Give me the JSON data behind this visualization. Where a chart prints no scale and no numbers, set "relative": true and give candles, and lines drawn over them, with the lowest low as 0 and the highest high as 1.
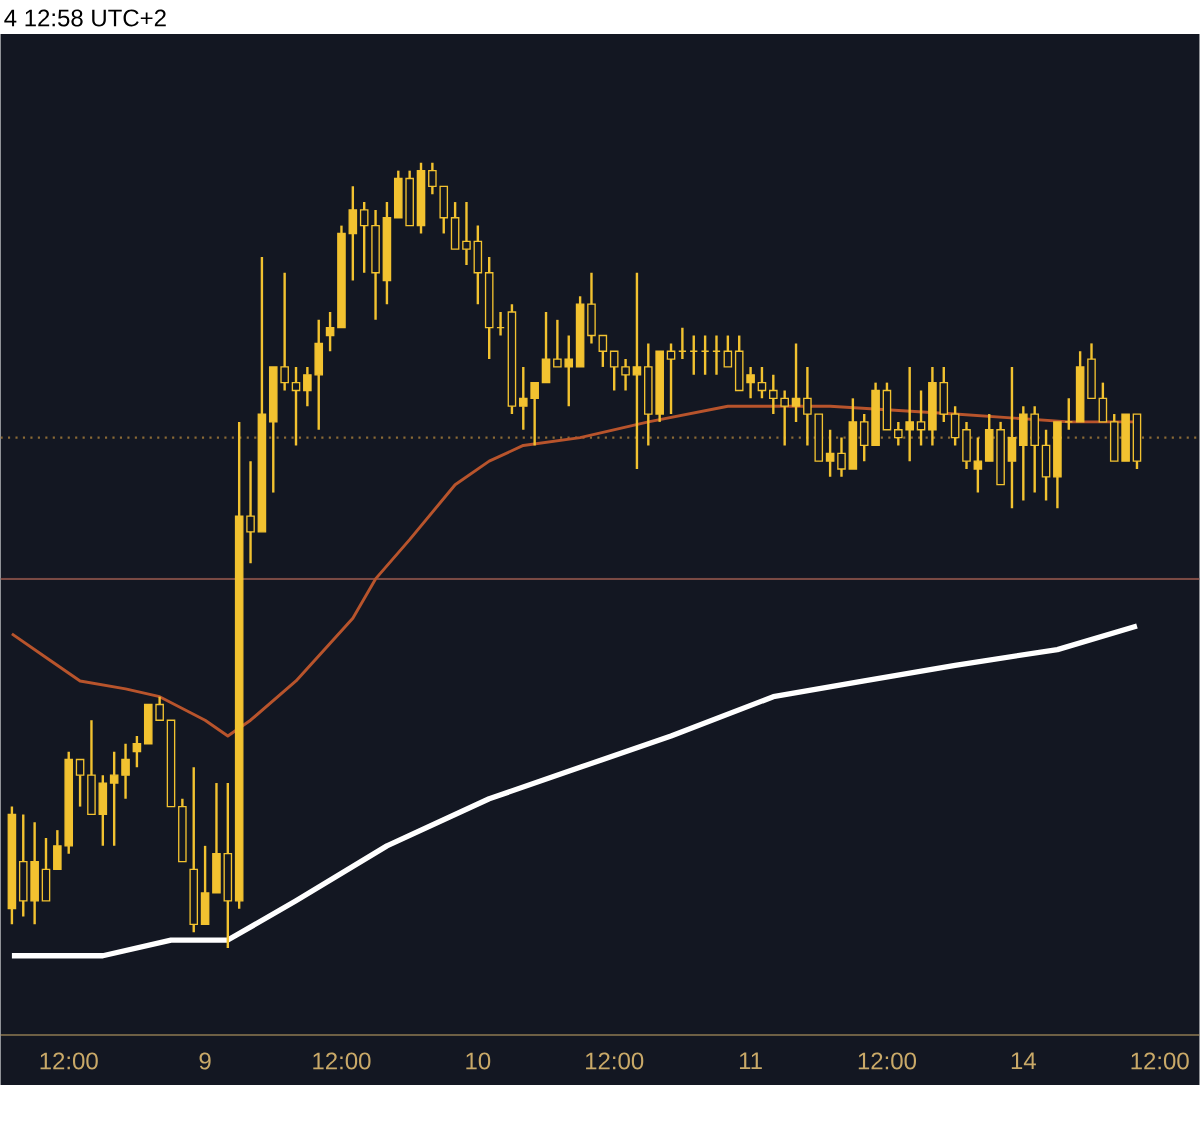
{
  "chart_data": {
    "type": "candlestick",
    "title": "4 12:58 UTC+2",
    "relative": true,
    "color": "#f2c230",
    "categories": [
      null,
      null,
      null,
      null,
      null,
      "12:00",
      null,
      null,
      null,
      null,
      null,
      null,
      null,
      null,
      null,
      null,
      null,
      "9",
      null,
      null,
      null,
      null,
      null,
      null,
      null,
      null,
      null,
      null,
      null,
      "12:00",
      null,
      null,
      null,
      null,
      null,
      null,
      null,
      null,
      null,
      null,
      null,
      "10",
      null,
      null,
      null,
      null,
      null,
      null,
      null,
      null,
      null,
      null,
      null,
      "12:00",
      null,
      null,
      null,
      null,
      null,
      null,
      null,
      null,
      null,
      null,
      null,
      "11",
      null,
      null,
      null,
      null,
      null,
      null,
      null,
      null,
      null,
      null,
      null,
      "12:00",
      null,
      null,
      null,
      null,
      null,
      null,
      null,
      null,
      null,
      null,
      null,
      "14",
      null,
      null,
      null,
      null,
      null,
      null,
      null,
      null,
      null,
      null,
      null,
      "12:00",
      null,
      null,
      null
    ],
    "ohlc": [
      [
        0.05,
        0.18,
        0.03,
        0.17
      ],
      [
        0.11,
        0.17,
        0.04,
        0.06
      ],
      [
        0.06,
        0.16,
        0.03,
        0.11
      ],
      [
        0.1,
        0.14,
        0.06,
        0.06
      ],
      [
        0.1,
        0.15,
        0.1,
        0.13
      ],
      [
        0.13,
        0.25,
        0.12,
        0.24
      ],
      [
        0.24,
        0.24,
        0.18,
        0.22
      ],
      [
        0.22,
        0.29,
        0.17,
        0.17
      ],
      [
        0.17,
        0.22,
        0.13,
        0.21
      ],
      [
        0.21,
        0.25,
        0.13,
        0.22
      ],
      [
        0.22,
        0.26,
        0.19,
        0.24
      ],
      [
        0.25,
        0.27,
        0.23,
        0.26
      ],
      [
        0.26,
        0.31,
        0.26,
        0.31
      ],
      [
        0.31,
        0.32,
        0.29,
        0.29
      ],
      [
        0.29,
        0.29,
        0.18,
        0.18
      ],
      [
        0.18,
        0.19,
        0.11,
        0.11
      ],
      [
        0.1,
        0.23,
        0.02,
        0.03
      ],
      [
        0.03,
        0.13,
        0.03,
        0.07
      ],
      [
        0.07,
        0.21,
        0.07,
        0.12
      ],
      [
        0.12,
        0.21,
        0,
        0.06
      ],
      [
        0.06,
        0.67,
        0.05,
        0.55
      ],
      [
        0.55,
        0.62,
        0.49,
        0.53
      ],
      [
        0.53,
        0.88,
        0.53,
        0.68
      ],
      [
        0.67,
        0.74,
        0.58,
        0.74
      ],
      [
        0.74,
        0.86,
        0.71,
        0.72
      ],
      [
        0.72,
        0.74,
        0.64,
        0.71
      ],
      [
        0.71,
        0.74,
        0.69,
        0.73
      ],
      [
        0.73,
        0.8,
        0.66,
        0.77
      ],
      [
        0.78,
        0.81,
        0.76,
        0.79
      ],
      [
        0.79,
        0.92,
        0.79,
        0.91
      ],
      [
        0.91,
        0.97,
        0.85,
        0.94
      ],
      [
        0.94,
        0.95,
        0.86,
        0.92
      ],
      [
        0.92,
        0.94,
        0.8,
        0.86
      ],
      [
        0.85,
        0.95,
        0.82,
        0.93
      ],
      [
        0.93,
        0.99,
        0.93,
        0.98
      ],
      [
        0.98,
        0.99,
        0.92,
        0.92
      ],
      [
        0.92,
        1.0,
        0.91,
        0.99
      ],
      [
        0.99,
        1,
        0.96,
        0.97
      ],
      [
        0.97,
        0.97,
        0.91,
        0.93
      ],
      [
        0.93,
        0.95,
        0.89,
        0.89
      ],
      [
        0.9,
        0.95,
        0.87,
        0.89
      ],
      [
        0.9,
        0.92,
        0.82,
        0.86
      ],
      [
        0.86,
        0.88,
        0.75,
        0.79
      ],
      [
        0.79,
        0.81,
        0.78,
        0.79
      ],
      [
        0.81,
        0.82,
        0.68,
        0.69
      ],
      [
        0.69,
        0.74,
        0.66,
        0.7
      ],
      [
        0.7,
        0.72,
        0.64,
        0.72
      ],
      [
        0.72,
        0.81,
        0.72,
        0.75
      ],
      [
        0.75,
        0.8,
        0.74,
        0.74
      ],
      [
        0.74,
        0.78,
        0.69,
        0.75
      ],
      [
        0.74,
        0.83,
        0.74,
        0.82
      ],
      [
        0.82,
        0.86,
        0.77,
        0.78
      ],
      [
        0.78,
        0.78,
        0.74,
        0.76
      ],
      [
        0.76,
        0.76,
        0.71,
        0.74
      ],
      [
        0.74,
        0.75,
        0.71,
        0.73
      ],
      [
        0.73,
        0.86,
        0.61,
        0.74
      ],
      [
        0.74,
        0.77,
        0.64,
        0.68
      ],
      [
        0.68,
        0.76,
        0.67,
        0.76
      ],
      [
        0.76,
        0.77,
        0.68,
        0.75
      ],
      [
        0.76,
        0.79,
        0.75,
        0.76
      ],
      [
        0.76,
        0.78,
        0.73,
        0.76
      ],
      [
        0.76,
        0.78,
        0.73,
        0.76
      ],
      [
        0.76,
        0.78,
        0.73,
        0.76
      ],
      [
        0.76,
        0.78,
        0.74,
        0.74
      ],
      [
        0.76,
        0.78,
        0.71,
        0.71
      ],
      [
        0.72,
        0.74,
        0.7,
        0.73
      ],
      [
        0.72,
        0.74,
        0.7,
        0.71
      ],
      [
        0.71,
        0.73,
        0.68,
        0.7
      ],
      [
        0.7,
        0.71,
        0.64,
        0.69
      ],
      [
        0.69,
        0.77,
        0.67,
        0.7
      ],
      [
        0.7,
        0.74,
        0.64,
        0.68
      ],
      [
        0.68,
        0.68,
        0.62,
        0.62
      ],
      [
        0.62,
        0.66,
        0.6,
        0.63
      ],
      [
        0.63,
        0.65,
        0.6,
        0.61
      ],
      [
        0.61,
        0.7,
        0.61,
        0.67
      ],
      [
        0.67,
        0.68,
        0.62,
        0.64
      ],
      [
        0.64,
        0.72,
        0.64,
        0.71
      ],
      [
        0.71,
        0.72,
        0.66,
        0.66
      ],
      [
        0.66,
        0.67,
        0.64,
        0.65
      ],
      [
        0.66,
        0.74,
        0.62,
        0.67
      ],
      [
        0.67,
        0.71,
        0.64,
        0.66
      ],
      [
        0.66,
        0.74,
        0.64,
        0.72
      ],
      [
        0.72,
        0.74,
        0.67,
        0.68
      ],
      [
        0.68,
        0.69,
        0.64,
        0.65
      ],
      [
        0.66,
        0.67,
        0.61,
        0.62
      ],
      [
        0.61,
        0.65,
        0.58,
        0.62
      ],
      [
        0.62,
        0.68,
        0.62,
        0.66
      ],
      [
        0.66,
        0.67,
        0.59,
        0.59
      ],
      [
        0.62,
        0.74,
        0.56,
        0.65
      ],
      [
        0.64,
        0.69,
        0.57,
        0.68
      ],
      [
        0.68,
        0.69,
        0.58,
        0.64
      ],
      [
        0.64,
        0.66,
        0.57,
        0.6
      ],
      [
        0.6,
        0.67,
        0.56,
        0.67
      ],
      [
        0.67,
        0.7,
        0.66,
        0.67
      ],
      [
        0.67,
        0.76,
        0.67,
        0.74
      ],
      [
        0.75,
        0.77,
        0.7,
        0.7
      ],
      [
        0.7,
        0.72,
        0.67,
        0.67
      ],
      [
        0.67,
        0.68,
        0.62,
        0.62
      ],
      [
        0.62,
        0.68,
        0.62,
        0.68
      ],
      [
        0.68,
        0.68,
        0.61,
        0.62
      ],
      null,
      null,
      null,
      null,
      null
    ],
    "series": [
      {
        "type": "line",
        "color": "#b8542c",
        "values": [
          0.4,
          null,
          null,
          0.37,
          null,
          null,
          0.34,
          null,
          null,
          null,
          0.33,
          null,
          null,
          0.32,
          null,
          null,
          null,
          0.29,
          null,
          0.27,
          null,
          0.29,
          null,
          null,
          null,
          0.34,
          null,
          null,
          null,
          null,
          0.42,
          null,
          0.47,
          null,
          null,
          0.52,
          null,
          null,
          null,
          0.59,
          null,
          null,
          0.62,
          null,
          null,
          0.64,
          null,
          null,
          null,
          null,
          0.65,
          null,
          null,
          null,
          null,
          null,
          0.67,
          null,
          null,
          null,
          null,
          null,
          null,
          0.69,
          null,
          null,
          null,
          null,
          null,
          null,
          null,
          null,
          0.69,
          null,
          null,
          null,
          null,
          null,
          null,
          null,
          null,
          null,
          null,
          0.68,
          null,
          null,
          null,
          null,
          null,
          null,
          null,
          null,
          null,
          0.67,
          null,
          null,
          null,
          null,
          null,
          0.67,
          null,
          null,
          null,
          null,
          null
        ]
      },
      {
        "type": "line",
        "color": "#ffffff",
        "values": [
          -0.01,
          null,
          null,
          null,
          null,
          null,
          null,
          null,
          -0.01,
          null,
          null,
          null,
          null,
          null,
          0.01,
          null,
          null,
          null,
          null,
          0.01,
          null,
          null,
          null,
          null,
          null,
          0.06,
          null,
          null,
          null,
          null,
          null,
          null,
          null,
          0.13,
          null,
          null,
          null,
          null,
          null,
          null,
          null,
          null,
          0.19,
          null,
          null,
          null,
          null,
          null,
          null,
          null,
          0.23,
          null,
          null,
          null,
          null,
          null,
          null,
          null,
          0.27,
          null,
          null,
          null,
          null,
          null,
          null,
          null,
          null,
          0.32,
          null,
          null,
          null,
          null,
          null,
          null,
          null,
          0.34,
          null,
          null,
          null,
          null,
          null,
          null,
          null,
          0.36,
          null,
          null,
          null,
          null,
          null,
          null,
          null,
          null,
          0.38,
          null,
          null,
          null,
          null,
          null,
          null,
          0.41,
          null,
          null,
          null,
          null,
          null
        ]
      }
    ],
    "ref_lines": [
      {
        "axis": "y",
        "value": 0.65,
        "color": "#8a6a36",
        "line_style": "dotted"
      },
      {
        "axis": "y",
        "value": 0.47,
        "color": "#7a4a44",
        "line_style": "solid"
      }
    ]
  }
}
